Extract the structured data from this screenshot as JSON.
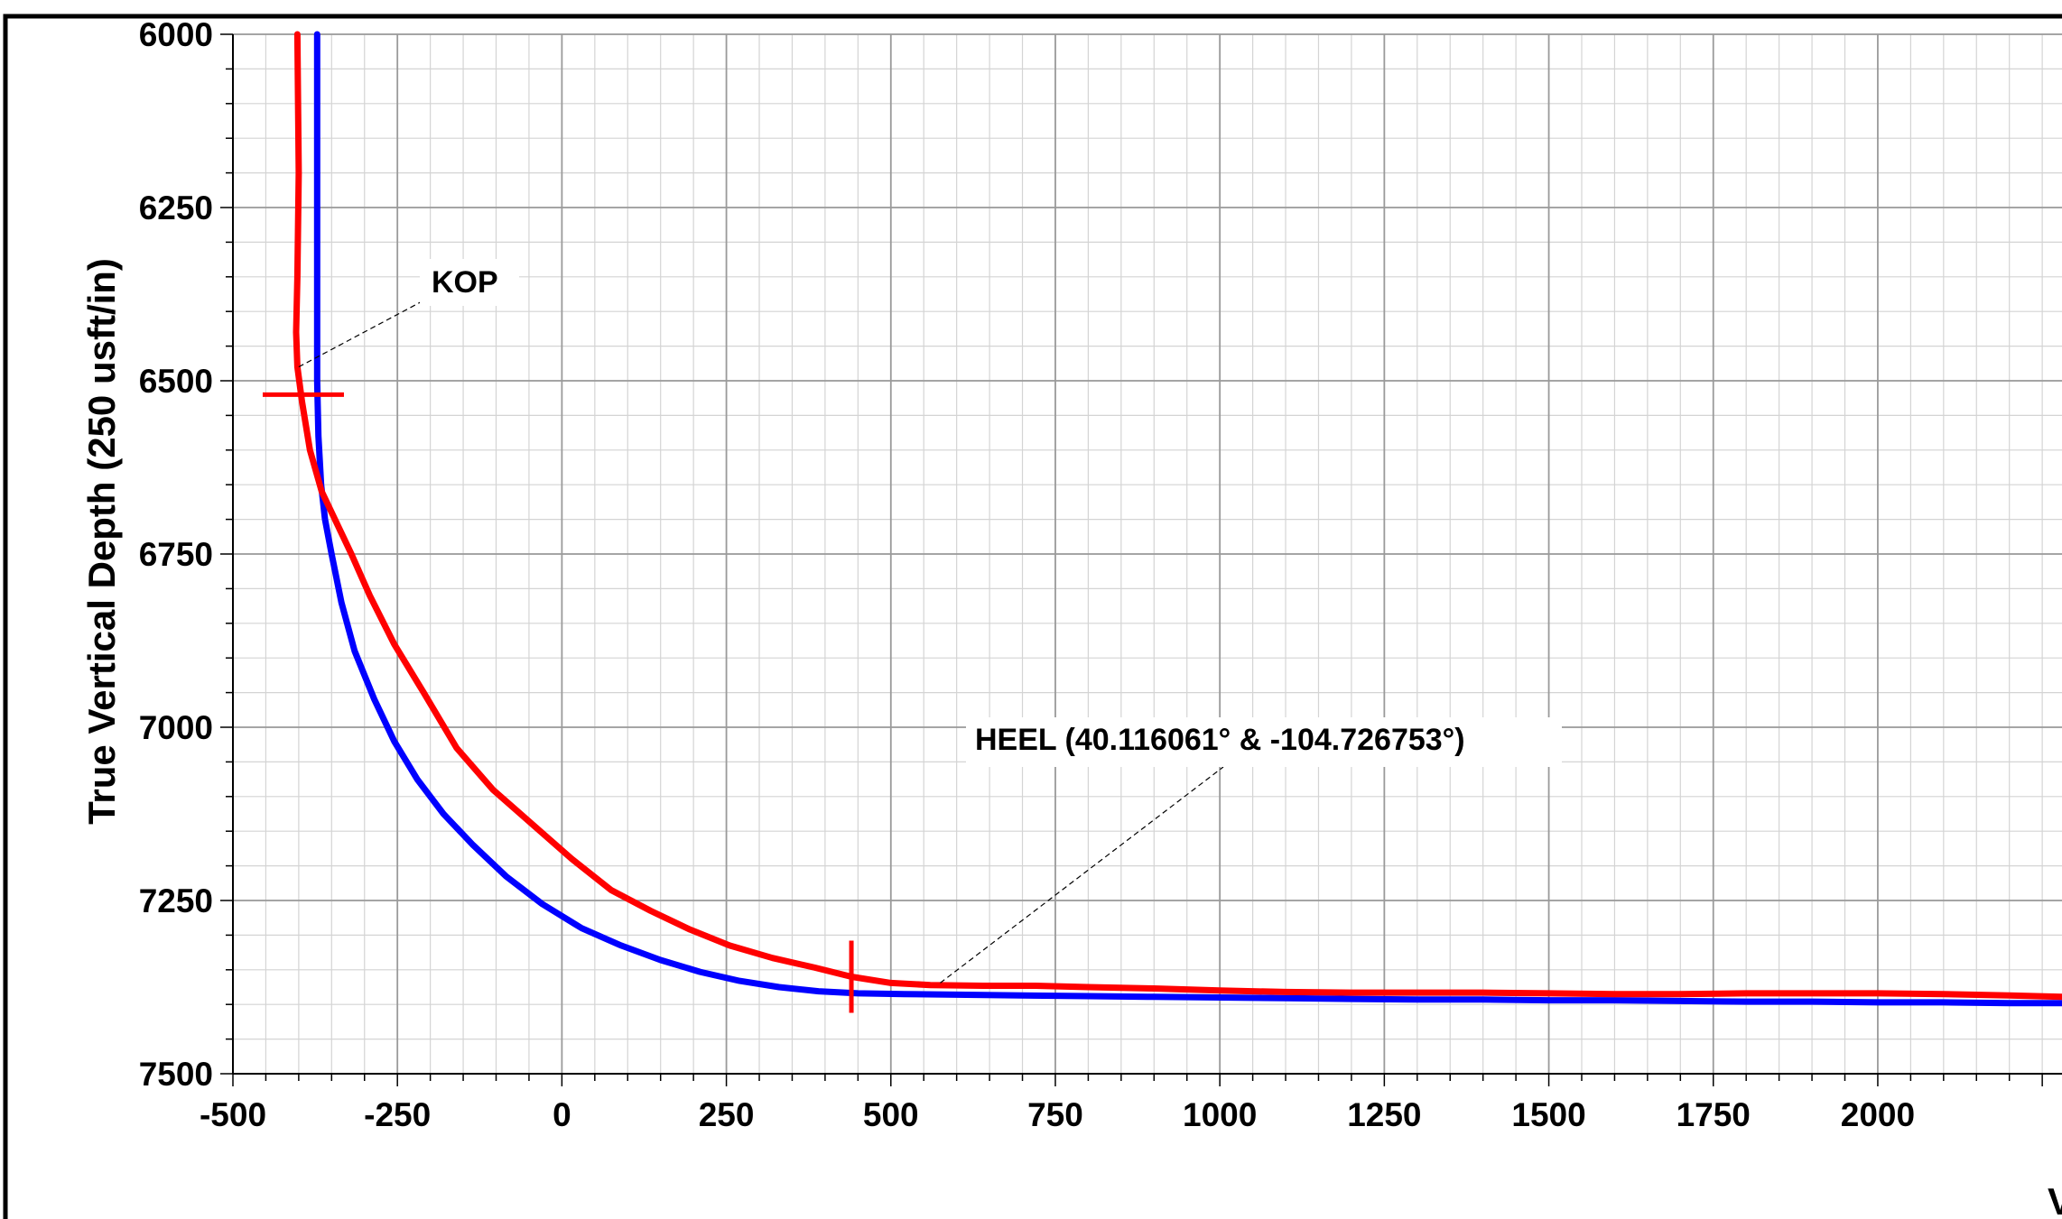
{
  "chart_data": {
    "type": "line",
    "title": "",
    "ylabel": "True Vertical Depth (250 usft/in)",
    "xlabel": "V",
    "xlim": [
      -500,
      2280
    ],
    "ylim": [
      7500,
      6000
    ],
    "y_inverted": true,
    "x_ticks": [
      -500,
      -250,
      0,
      250,
      500,
      750,
      1000,
      1250,
      1500,
      1750,
      2000
    ],
    "y_ticks": [
      6000,
      6250,
      6500,
      6750,
      7000,
      7250,
      7500
    ],
    "grid": true,
    "series": [
      {
        "color": "#0000ff",
        "x": [
          -372,
          -372,
          -372,
          -370,
          -366,
          -360,
          -350,
          -335,
          -315,
          -285,
          -255,
          -220,
          -180,
          -135,
          -85,
          -30,
          30,
          90,
          150,
          210,
          270,
          330,
          390,
          450,
          520,
          600,
          700,
          800,
          900,
          1000,
          1100,
          1200,
          1300,
          1400,
          1500,
          1600,
          1700,
          1800,
          1900,
          2000,
          2100,
          2200,
          2280
        ],
        "y": [
          6000,
          6250,
          6500,
          6580,
          6650,
          6700,
          6750,
          6820,
          6890,
          6960,
          7020,
          7075,
          7125,
          7170,
          7215,
          7255,
          7290,
          7315,
          7336,
          7353,
          7366,
          7375,
          7381,
          7384,
          7385,
          7386,
          7387,
          7388,
          7389,
          7390,
          7391,
          7392,
          7393,
          7393,
          7394,
          7394,
          7395,
          7396,
          7396,
          7397,
          7397,
          7398,
          7398
        ]
      },
      {
        "color": "#ff0000",
        "x": [
          -402,
          -400,
          -402,
          -404,
          -402,
          -395,
          -383,
          -365,
          -345,
          -320,
          -292,
          -255,
          -210,
          -160,
          -105,
          -45,
          15,
          75,
          135,
          195,
          255,
          320,
          385,
          440,
          500,
          560,
          640,
          720,
          800,
          900,
          1000,
          1100,
          1200,
          1300,
          1400,
          1500,
          1600,
          1700,
          1800,
          1900,
          2000,
          2100,
          2200,
          2280
        ],
        "y": [
          6000,
          6200,
          6350,
          6430,
          6480,
          6530,
          6600,
          6660,
          6700,
          6750,
          6810,
          6880,
          6950,
          7030,
          7090,
          7140,
          7190,
          7235,
          7265,
          7292,
          7315,
          7333,
          7347,
          7360,
          7369,
          7372,
          7373,
          7373,
          7375,
          7377,
          7380,
          7382,
          7383,
          7383,
          7383,
          7384,
          7385,
          7385,
          7384,
          7384,
          7384,
          7385,
          7387,
          7389
        ]
      }
    ],
    "markers": [
      {
        "name": "kop-marker",
        "x": -393,
        "y": 6520,
        "orientation": "horizontal",
        "color": "#ff0000"
      },
      {
        "name": "heel-marker",
        "x": 440,
        "y": 7360,
        "orientation": "vertical",
        "color": "#ff0000"
      }
    ],
    "annotations": [
      {
        "name": "kop",
        "text": "KOP",
        "anchor_x": -400,
        "anchor_y": 6480
      },
      {
        "name": "heel",
        "text": "HEEL (40.116061°  & -104.726753°)",
        "anchor_x": 575,
        "anchor_y": 7369
      }
    ]
  }
}
